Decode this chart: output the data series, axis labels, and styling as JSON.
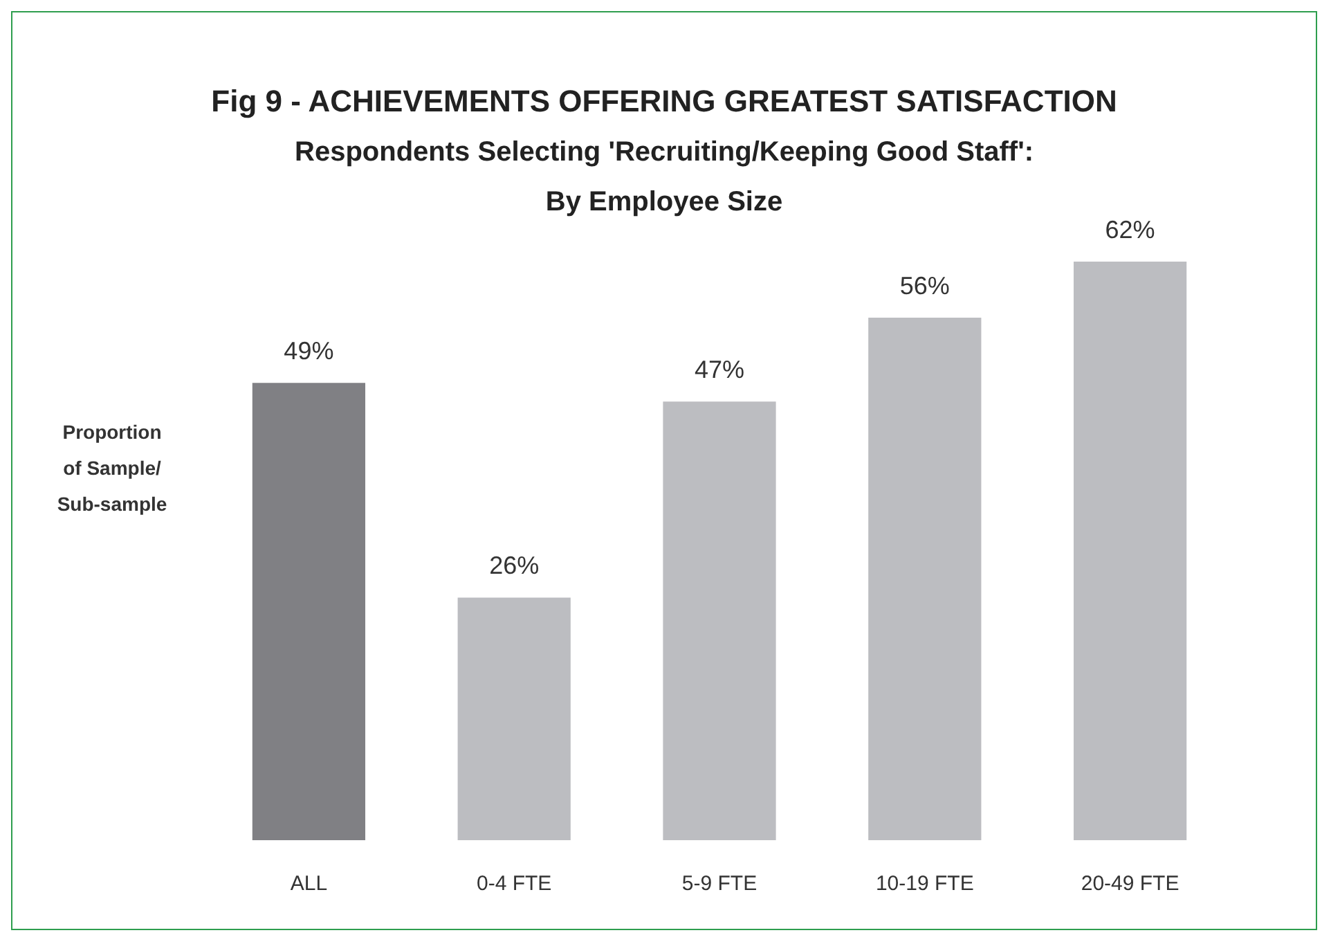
{
  "chart_data": {
    "type": "bar",
    "title": "Fig 9 - ACHIEVEMENTS OFFERING GREATEST SATISFACTION",
    "subtitle": "Respondents Selecting 'Recruiting/Keeping Good Staff':\nBy Employee Size",
    "ylabel": "Proportion\nof Sample/\nSub-sample",
    "categories": [
      "ALL",
      "0-4 FTE",
      "5-9 FTE",
      "10-19 FTE",
      "20-49 FTE"
    ],
    "values": [
      49,
      26,
      47,
      56,
      62
    ],
    "colors": [
      "#808084",
      "#bcbdc1",
      "#bcbdc1",
      "#bcbdc1",
      "#bcbdc1"
    ],
    "value_labels": [
      "49%",
      "26%",
      "47%",
      "56%",
      "62%"
    ],
    "grid": false
  }
}
